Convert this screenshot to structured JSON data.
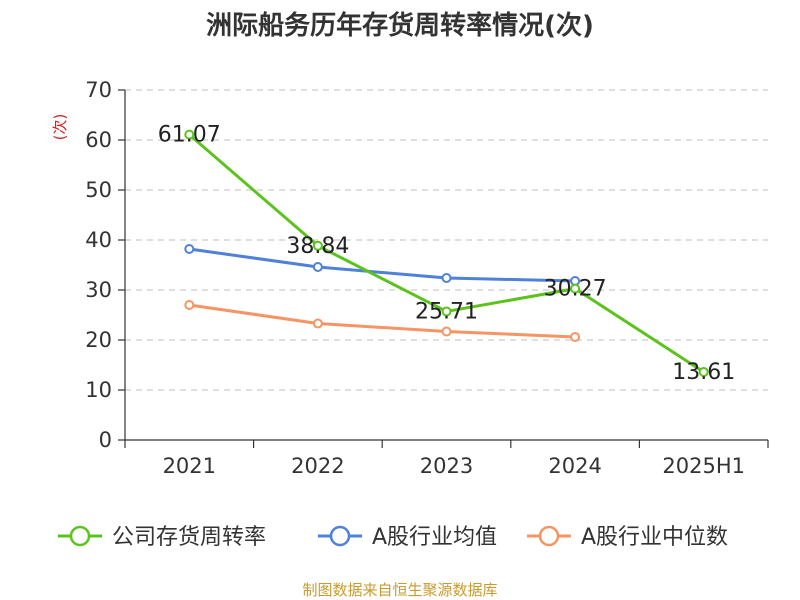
{
  "chart_data": {
    "type": "line",
    "title": "洲际船务历年存货周转率情况(次)",
    "ylabel": "(次)",
    "xlabel": "",
    "categories": [
      "2021",
      "2022",
      "2023",
      "2024",
      "2025H1"
    ],
    "ylim": [
      0,
      70
    ],
    "yticks": [
      0,
      10,
      20,
      30,
      40,
      50,
      60,
      70
    ],
    "grid": true,
    "legend_position": "bottom",
    "series": [
      {
        "name": "公司存货周转率",
        "color": "#5cc31d",
        "values": [
          61.07,
          38.84,
          25.71,
          30.27,
          13.61
        ],
        "data_labels": [
          "61.07",
          "38.84",
          "25.71",
          "30.27",
          "13.61"
        ]
      },
      {
        "name": "A股行业均值",
        "color": "#4f81d9",
        "values": [
          38.2,
          34.6,
          32.4,
          31.8,
          null
        ]
      },
      {
        "name": "A股行业中位数",
        "color": "#f49563",
        "values": [
          27.0,
          23.3,
          21.7,
          20.6,
          null
        ]
      }
    ]
  },
  "source": "制图数据来自恒生聚源数据库"
}
